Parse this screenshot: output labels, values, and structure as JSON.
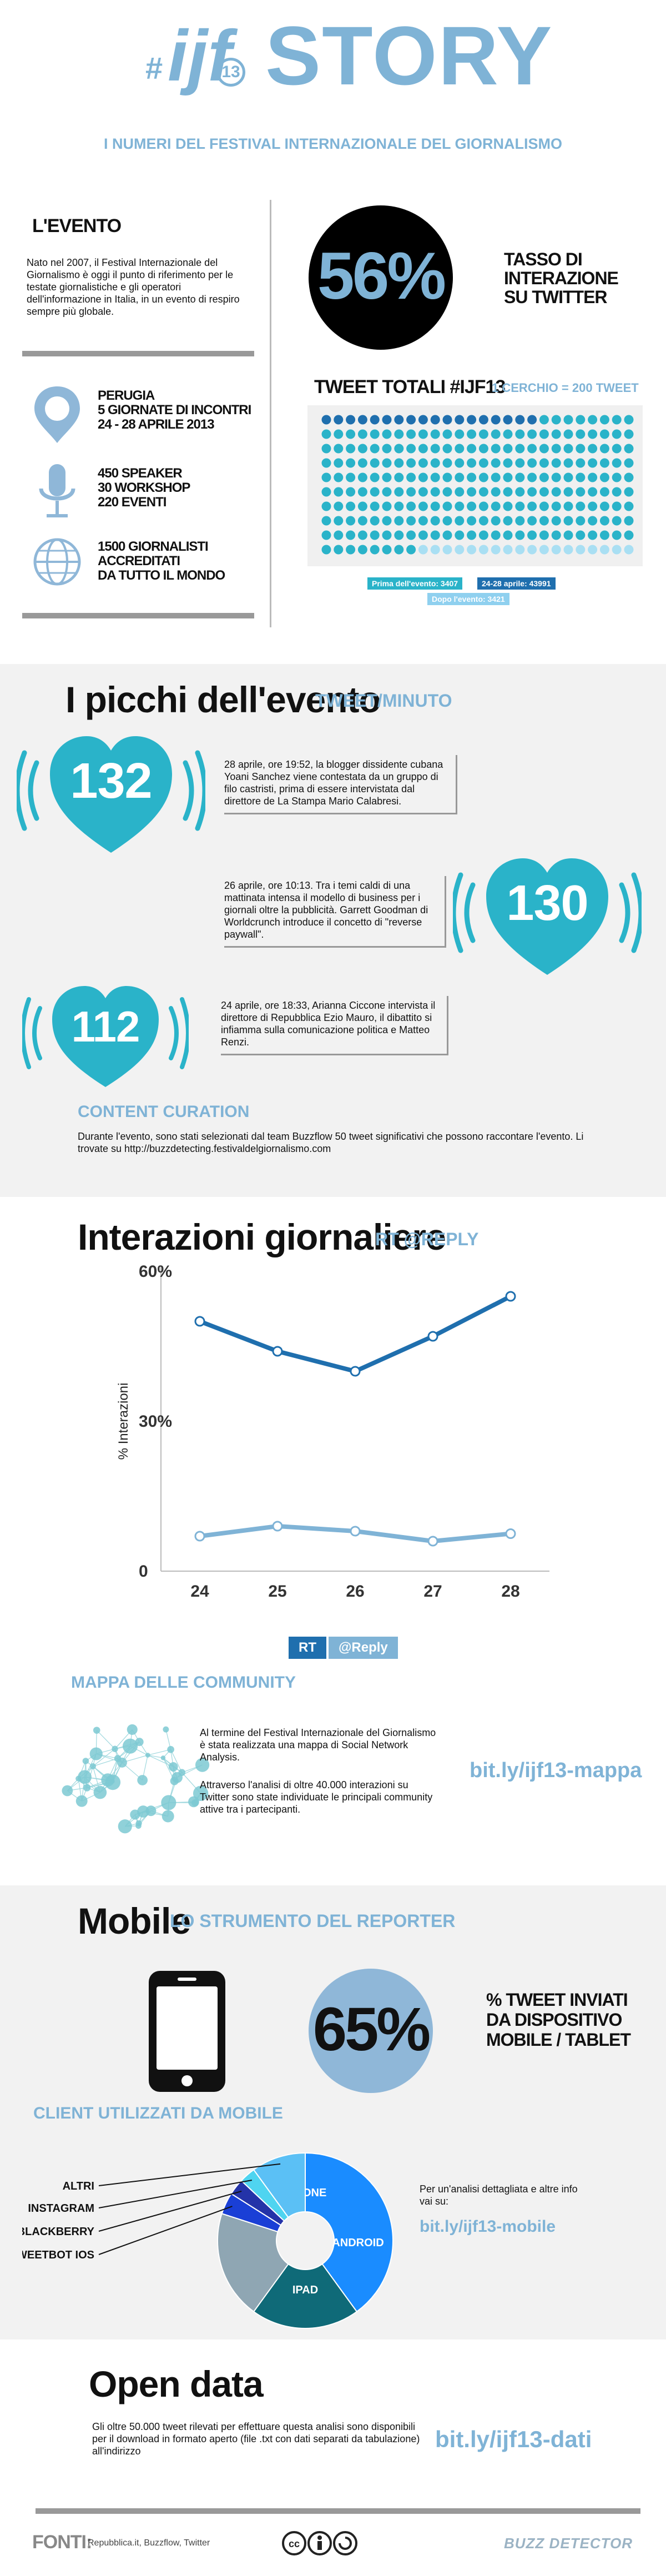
{
  "header": {
    "logo_text": "ijf",
    "logo_hash": "#",
    "logo_num": "13",
    "title": "STORY",
    "subtitle": "I NUMERI DEL FESTIVAL INTERNAZIONALE DEL GIORNALISMO"
  },
  "evento": {
    "heading": "L'EVENTO",
    "text": "Nato nel 2007, il Festival Internazionale del Giornalismo è oggi il punto di riferimento per le testate giornalistiche e gli operatori dell'informazione in Italia, in un evento di respiro sempre più globale.",
    "facts": [
      {
        "icon": "map-pin-icon",
        "lines": [
          "PERUGIA",
          "5 GIORNATE DI INCONTRI",
          "24 - 28 APRILE 2013"
        ]
      },
      {
        "icon": "microphone-icon",
        "lines": [
          "450 SPEAKER",
          "30 WORKSHOP",
          "220 EVENTI"
        ]
      },
      {
        "icon": "globe-icon",
        "lines": [
          "1500 GIORNALISTI",
          "ACCREDITATI",
          "DA TUTTO IL MONDO"
        ]
      }
    ]
  },
  "twitter": {
    "rate": "56%",
    "rate_label": [
      "TASSO DI",
      "INTERAZIONE",
      "SU TWITTER"
    ],
    "tweet_total_title": "TWEET TOTALI #IJF13",
    "tweet_legend": "1 CERCHIO = 200 TWEET",
    "before_label": "Prima dell'evento: 3407",
    "during_label": "24-28 aprile: 43991",
    "after_label": "Dopo l'evento: 3421",
    "dots_before_fraction": 0.068,
    "dots_during_fraction": 0.864,
    "dots_after_fraction": 0.068
  },
  "picchi": {
    "title": "I picchi dell'evento",
    "subtitle": "TWEET/MINUTO",
    "items": [
      {
        "value": "132",
        "text": "28 aprile, ore 19:52, la blogger dissidente cubana Yoani Sanchez viene contestata da un gruppo di filo castristi, prima di essere intervistata dal direttore de La Stampa Mario Calabresi."
      },
      {
        "value": "130",
        "text": "26 aprile, ore 10:13. Tra i temi caldi di una mattinata intensa il modello di business per i giornali oltre la pubblicità. Garrett Goodman di Worldcrunch introduce il concetto di \"reverse paywall\"."
      },
      {
        "value": "112",
        "text": "24 aprile, ore 18:33, Arianna Ciccone intervista il direttore di Repubblica Ezio Mauro, il dibattito si infiamma sulla comunicazione politica e Matteo Renzi."
      }
    ],
    "curation_title": "CONTENT CURATION",
    "curation_text": "Durante l'evento, sono stati selezionati dal team Buzzflow 50 tweet significativi che possono raccontare l'evento. Li trovate su http://buzzdetecting.festivaldelgiornalismo.com"
  },
  "interazioni": {
    "title": "Interazioni giornaliere",
    "subtitle": "RT @REPLY",
    "legend_rt": "RT",
    "legend_reply": "@Reply"
  },
  "chart_data": {
    "type": "line",
    "x": [
      24,
      25,
      26,
      27,
      28
    ],
    "categories": [
      "24",
      "25",
      "26",
      "27",
      "28"
    ],
    "series": [
      {
        "name": "RT",
        "color": "#1f6fae",
        "values": [
          50,
          44,
          40,
          47,
          55
        ]
      },
      {
        "name": "@Reply",
        "color": "#7fb3d6",
        "values": [
          7,
          9,
          8,
          6,
          7.5
        ]
      }
    ],
    "ylabel": "% Interazioni",
    "yticks": [
      "0",
      "30%",
      "60%"
    ],
    "ylim": [
      0,
      60
    ],
    "grid": false
  },
  "community": {
    "title": "MAPPA DELLE COMMUNITY",
    "text1": "Al termine del Festival Internazionale del Giornalismo è stata realizzata una mappa di Social Network Analysis.",
    "text2": "Attraverso l'analisi di oltre 40.000 interazioni su Twitter sono state individuate le principali community attive tra i partecipanti.",
    "link": "bit.ly/ijf13-mappa"
  },
  "mobile": {
    "title": "Mobile",
    "subtitle": "LO STRUMENTO DEL REPORTER",
    "rate": "65%",
    "rate_label": [
      "% TWEET INVIATI",
      "DA DISPOSITIVO",
      "MOBILE / TABLET"
    ],
    "clients_title": "CLIENT UTILIZZATI DA MOBILE",
    "more_text": "Per un'analisi dettagliata e altre info vai su:",
    "link": "bit.ly/ijf13-mobile",
    "pie": [
      {
        "label": "IPHONE",
        "value": 40,
        "color": "#1a8cff"
      },
      {
        "label": "ANDROID",
        "value": 20,
        "color": "#0f6a78"
      },
      {
        "label": "IPAD",
        "value": 20,
        "color": "#8fa6b3"
      },
      {
        "label": "TWEETBOT IOS",
        "value": 4,
        "color": "#1a3fd6"
      },
      {
        "label": "BLACKBERRY",
        "value": 3,
        "color": "#2433a8"
      },
      {
        "label": "INSTAGRAM",
        "value": 3,
        "color": "#4fd4f0"
      },
      {
        "label": "ALTRI",
        "value": 10,
        "color": "#5bc0f5"
      }
    ]
  },
  "opendata": {
    "title": "Open data",
    "text": "Gli oltre 50.000 tweet rilevati per effettuare questa analisi sono disponibili per il download in formato aperto (file .txt con dati separati da tabulazione) all'indirizzo",
    "link": "bit.ly/ijf13-dati"
  },
  "footer": {
    "fonti_label": "FONTI:",
    "fonti": "Repubblica.it, Buzzflow, Twitter",
    "brand": "BUZZ DETECTOR"
  },
  "colors": {
    "light_blue": "#7fb3d6",
    "teal": "#2ab3c9",
    "dark_blue": "#1f6fae"
  }
}
